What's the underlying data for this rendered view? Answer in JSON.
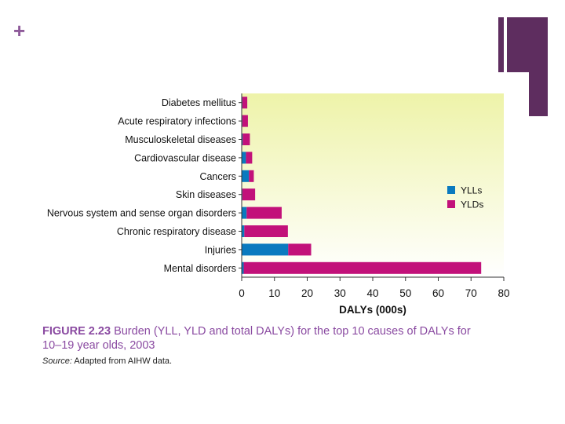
{
  "colors": {
    "accent": "#5e2d5f",
    "plus": "#8e5a9a",
    "caption": "#8a4aa1",
    "yll": "#0a7abf",
    "yld": "#c2117a",
    "plot_bg_top": "#eef3a9",
    "plot_bg_bottom": "#ffffff"
  },
  "slide": {
    "plus_icon": "plus-icon"
  },
  "chart_data": {
    "type": "bar",
    "orientation": "horizontal",
    "stacked": true,
    "categories": [
      "Diabetes mellitus",
      "Acute respiratory infections",
      "Musculoskeletal diseases",
      "Cardiovascular disease",
      "Cancers",
      "Skin diseases",
      "Nervous system and sense organ disorders",
      "Chronic respiratory disease",
      "Injuries",
      "Mental disorders"
    ],
    "series": [
      {
        "name": "YLLs",
        "values": [
          0.2,
          0.2,
          0.3,
          1.3,
          2.2,
          0.2,
          1.5,
          0.8,
          14.2,
          0.6
        ]
      },
      {
        "name": "YLDs",
        "values": [
          1.5,
          1.7,
          2.2,
          1.9,
          1.5,
          3.9,
          10.7,
          13.3,
          7.0,
          72.5
        ]
      }
    ],
    "xlabel": "DALYs (000s)",
    "xlim": [
      0,
      80
    ],
    "xticks": [
      0,
      10,
      20,
      30,
      40,
      50,
      60,
      70,
      80
    ],
    "grid": false,
    "legend_position": "right"
  },
  "caption": {
    "label": "FIGURE 2.23",
    "text": "Burden (YLL, YLD and total DALYs) for the top 10 causes of DALYs for 10–19 year olds, 2003"
  },
  "source": {
    "label": "Source:",
    "text": "Adapted from AIHW data."
  }
}
